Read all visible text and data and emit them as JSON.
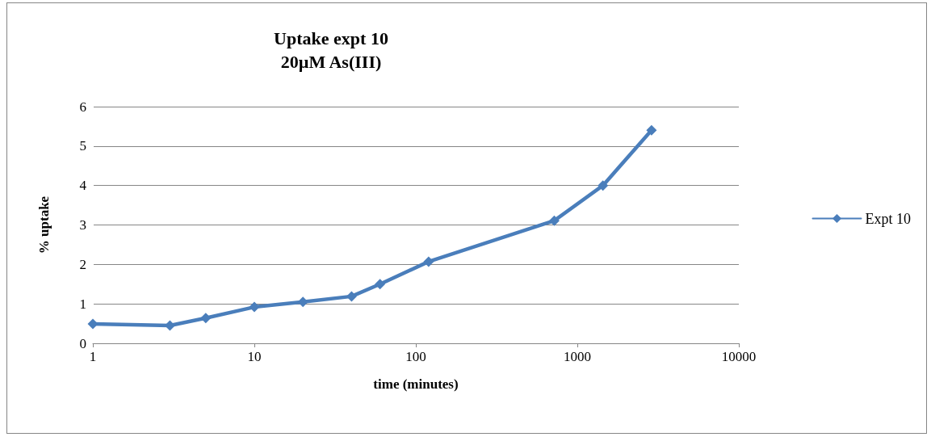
{
  "chart_data": {
    "type": "line",
    "title": "Uptake expt 10\n20µM As(III)",
    "xlabel": "time (minutes)",
    "ylabel": "% uptake",
    "x": [
      1,
      3,
      5,
      10,
      20,
      40,
      60,
      120,
      720,
      1440,
      2880
    ],
    "series": [
      {
        "name": "Expt 10",
        "color": "#4a7ebb",
        "values": [
          0.49,
          0.45,
          0.64,
          0.92,
          1.05,
          1.19,
          1.5,
          2.07,
          3.11,
          4.0,
          5.4
        ]
      }
    ],
    "log": "x",
    "xlim": [
      1,
      10000
    ],
    "xticks": [
      1,
      10,
      100,
      1000,
      10000
    ],
    "ylim": [
      0,
      6
    ],
    "yticks": [
      0,
      1,
      2,
      3,
      4,
      5,
      6
    ],
    "grid": "y",
    "legend": "right",
    "marker": "diamond",
    "line_style": "solid"
  }
}
